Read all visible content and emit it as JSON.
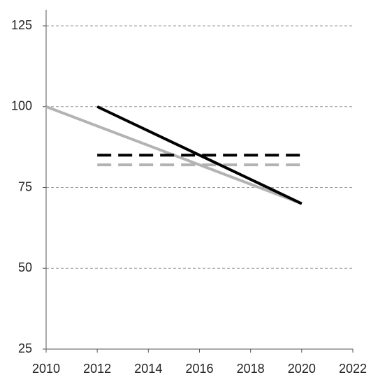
{
  "chart_data": {
    "type": "line",
    "series": [
      {
        "color": "#000000",
        "style": "solid",
        "x": [
          2012,
          2020
        ],
        "values": [
          100,
          70
        ]
      },
      {
        "color": "#b3b3b3",
        "style": "solid",
        "x": [
          2010,
          2020
        ],
        "values": [
          100,
          70
        ]
      },
      {
        "color": "#000000",
        "style": "dashed",
        "x": [
          2012,
          2020
        ],
        "values": [
          85,
          85
        ]
      },
      {
        "color": "#b3b3b3",
        "style": "dashed",
        "x": [
          2012,
          2020
        ],
        "values": [
          82,
          82
        ]
      }
    ],
    "xlim": [
      2010,
      2022
    ],
    "xticks": [
      2010,
      2012,
      2014,
      2016,
      2018,
      2020,
      2022
    ],
    "ylim": [
      25,
      125
    ],
    "yticks": [
      25,
      50,
      75,
      100,
      125
    ],
    "grid": true
  }
}
